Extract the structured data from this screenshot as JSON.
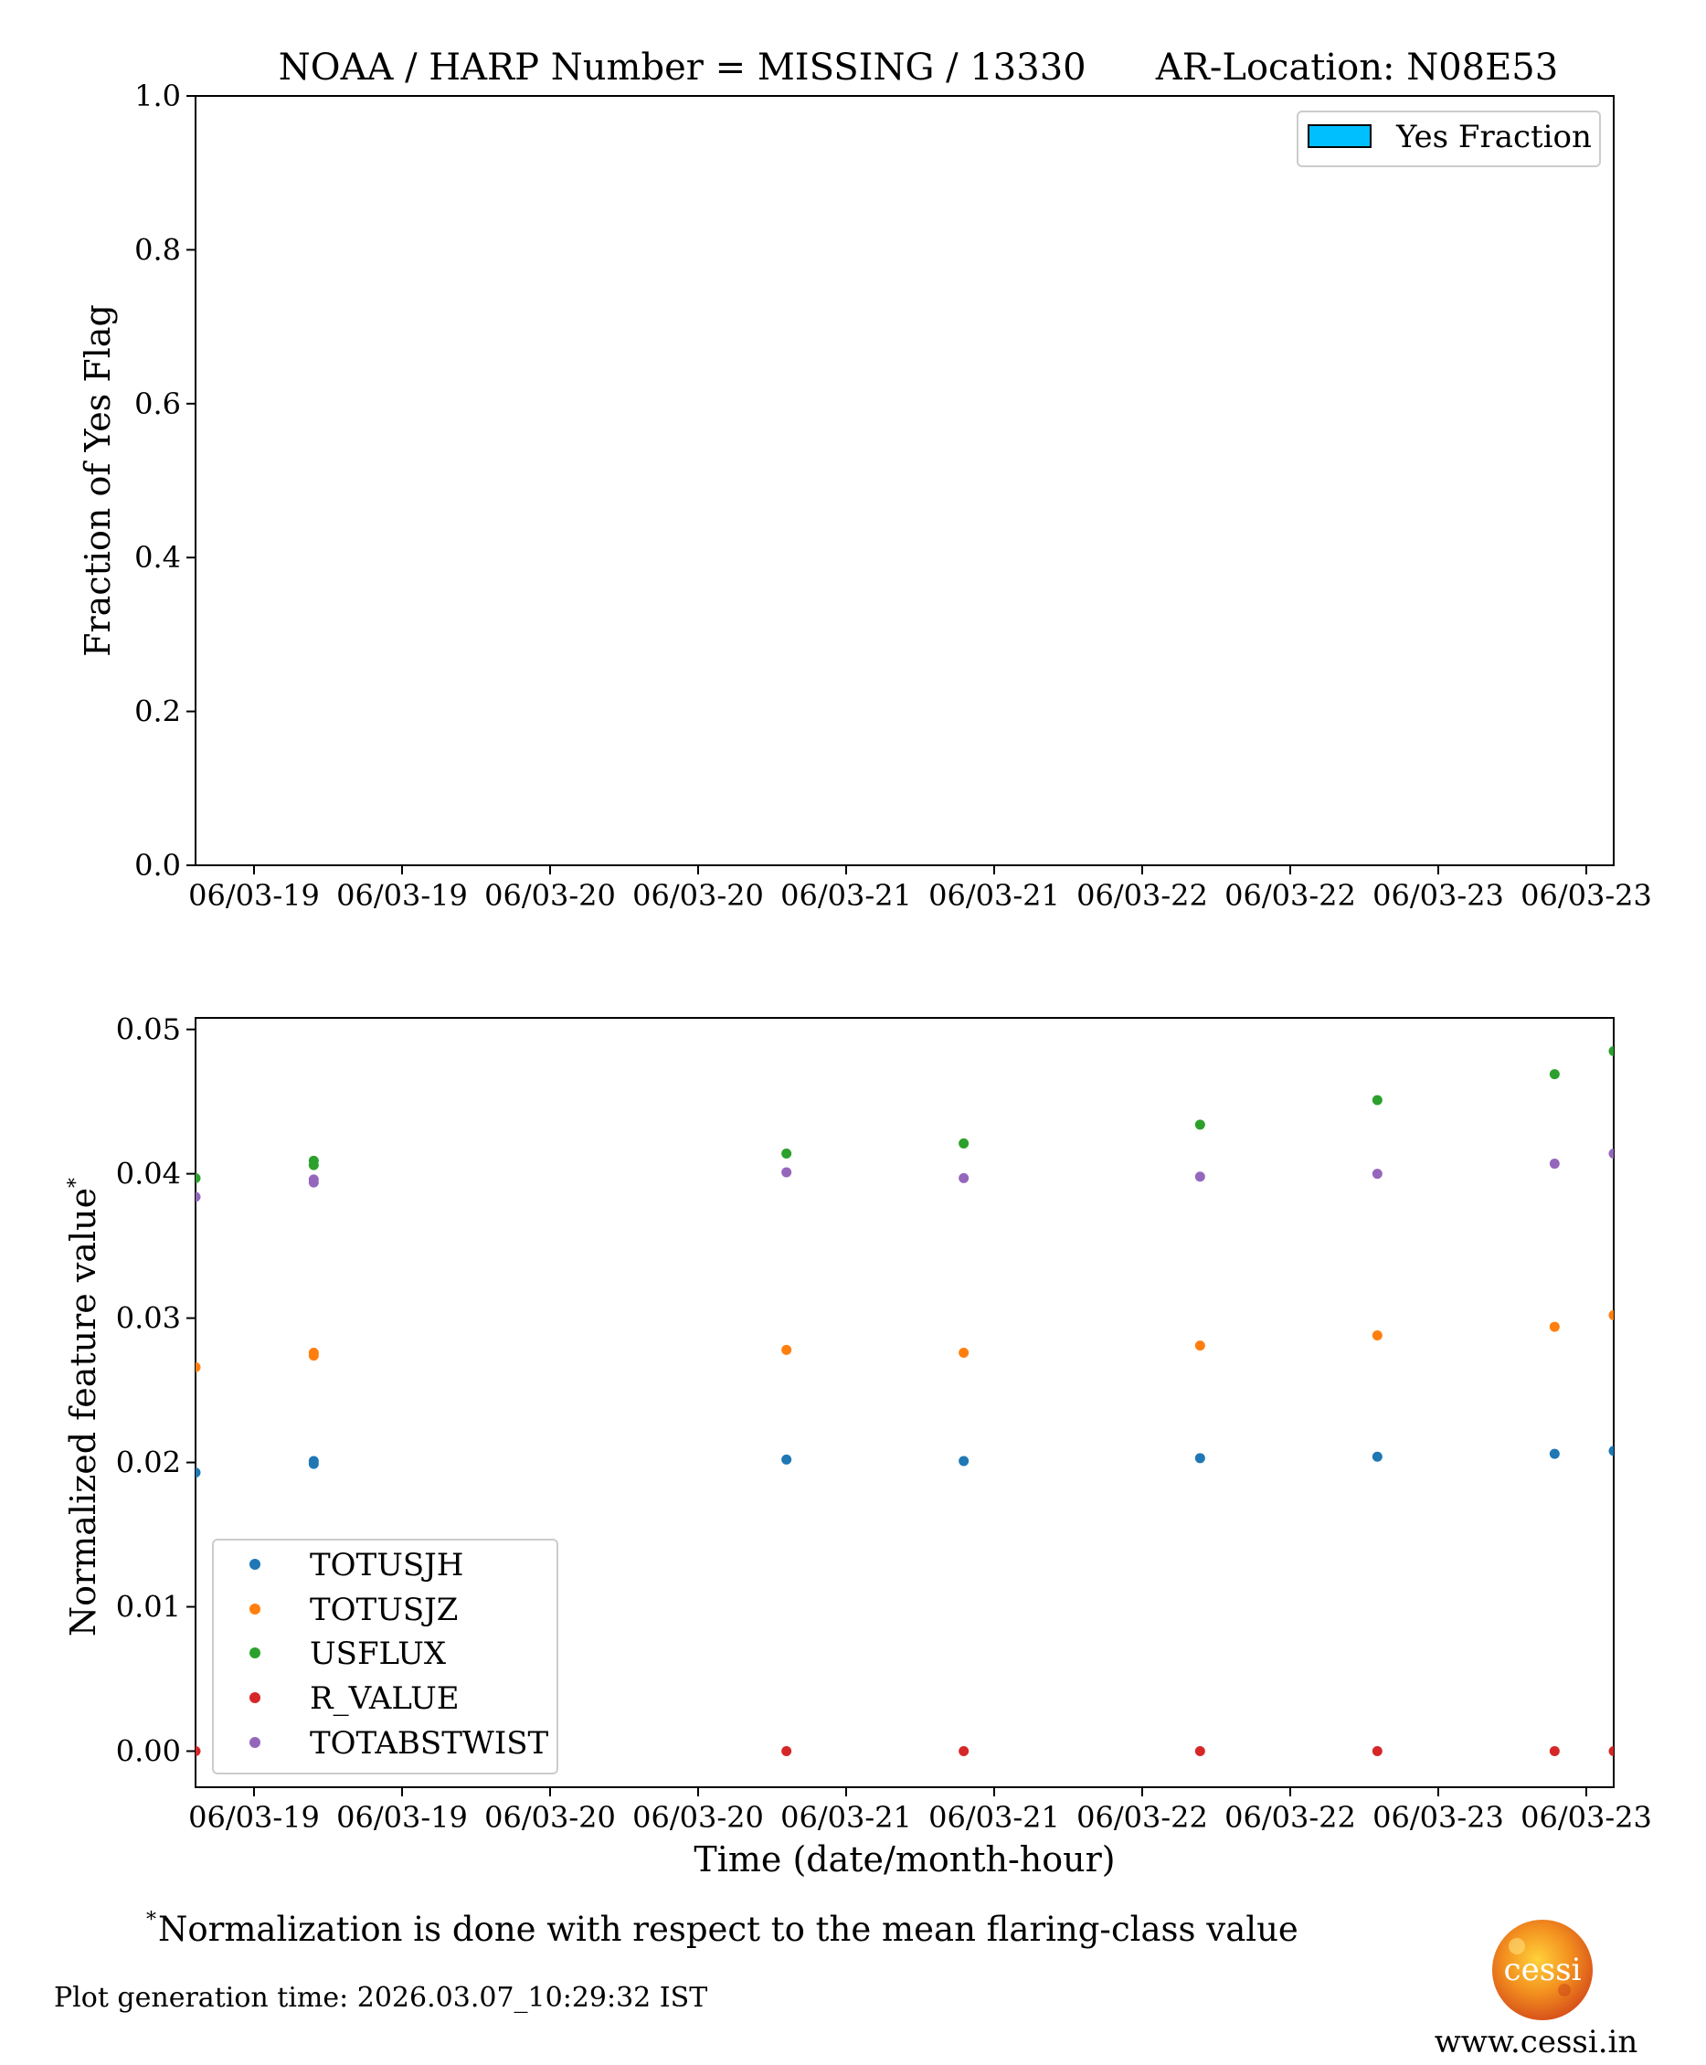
{
  "colors": {
    "TOTUSJH": "#1f77b4",
    "TOTUSJZ": "#ff7f0e",
    "USFLUX": "#2ca02c",
    "R_VALUE": "#d62728",
    "TOTABSTWIST": "#9467bd",
    "yes_fraction_fill": "#00bfff",
    "logo": "#f08a1c"
  },
  "chart_data": [
    {
      "type": "bar",
      "title": "NOAA / HARP Number = MISSING / 13330      AR-Location: N08E53",
      "ylabel": "Fraction of Yes Flag",
      "ylim": [
        0.0,
        1.0
      ],
      "yticks": [
        "0.0",
        "0.2",
        "0.4",
        "0.6",
        "0.8",
        "1.0"
      ],
      "xticks": [
        "06/03-19",
        "06/03-19",
        "06/03-20",
        "06/03-20",
        "06/03-21",
        "06/03-21",
        "06/03-22",
        "06/03-22",
        "06/03-23",
        "06/03-23"
      ],
      "legend": {
        "placement": "top-right",
        "entries": [
          "Yes Fraction"
        ]
      },
      "series": [
        {
          "name": "Yes Fraction",
          "values": []
        }
      ]
    },
    {
      "type": "scatter",
      "xlabel": "Time (date/month-hour)",
      "ylabel": "Normalized feature value",
      "ylabel_sup": "*",
      "ylim": [
        -0.0025,
        0.0508
      ],
      "yticks": [
        "0.00",
        "0.01",
        "0.02",
        "0.03",
        "0.04",
        "0.05"
      ],
      "xticks": [
        "06/03-19",
        "06/03-19",
        "06/03-20",
        "06/03-20",
        "06/03-21",
        "06/03-21",
        "06/03-22",
        "06/03-22",
        "06/03-23",
        "06/03-23"
      ],
      "x_hours": [
        0.0,
        2.0,
        2.0,
        10.0,
        13.0,
        17.0,
        20.0,
        23.0,
        24.0
      ],
      "legend": {
        "placement": "lower-left",
        "entries": [
          "TOTUSJH",
          "TOTUSJZ",
          "USFLUX",
          "R_VALUE",
          "TOTABSTWIST"
        ]
      },
      "series": [
        {
          "name": "TOTUSJH",
          "values": [
            0.0193,
            0.0201,
            0.0199,
            0.0202,
            0.0201,
            0.0203,
            0.0204,
            0.0206,
            0.0208
          ]
        },
        {
          "name": "TOTUSJZ",
          "values": [
            0.0266,
            0.0276,
            0.0274,
            0.0278,
            0.0276,
            0.0281,
            0.0288,
            0.0294,
            0.0302
          ]
        },
        {
          "name": "USFLUX",
          "values": [
            0.0397,
            0.0409,
            0.0406,
            0.0414,
            0.0421,
            0.0434,
            0.0451,
            0.0469,
            0.0485
          ]
        },
        {
          "name": "R_VALUE",
          "values": [
            0.0,
            0.0,
            0.0,
            0.0,
            0.0,
            0.0,
            0.0,
            0.0,
            0.0
          ]
        },
        {
          "name": "TOTABSTWIST",
          "values": [
            0.0384,
            0.0396,
            0.0394,
            0.0401,
            0.0397,
            0.0398,
            0.04,
            0.0407,
            0.0414
          ]
        }
      ]
    }
  ],
  "footer": {
    "note_sup": "*",
    "note": "Normalization is done with respect to the mean flaring-class value",
    "generation_time": "Plot generation time: 2026.03.07_10:29:32 IST",
    "logo_text": "cessi",
    "url": "www.cessi.in"
  }
}
